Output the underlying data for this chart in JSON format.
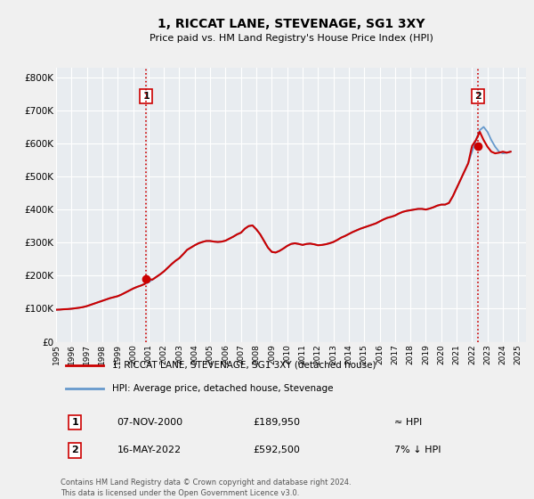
{
  "title": "1, RICCAT LANE, STEVENAGE, SG1 3XY",
  "subtitle": "Price paid vs. HM Land Registry's House Price Index (HPI)",
  "xlim_left": 1995.0,
  "xlim_right": 2025.5,
  "ylim_bottom": 0,
  "ylim_top": 830000,
  "yticks": [
    0,
    100000,
    200000,
    300000,
    400000,
    500000,
    600000,
    700000,
    800000
  ],
  "ytick_labels": [
    "£0",
    "£100K",
    "£200K",
    "£300K",
    "£400K",
    "£500K",
    "£600K",
    "£700K",
    "£800K"
  ],
  "xticks": [
    1995,
    1996,
    1997,
    1998,
    1999,
    2000,
    2001,
    2002,
    2003,
    2004,
    2005,
    2006,
    2007,
    2008,
    2009,
    2010,
    2011,
    2012,
    2013,
    2014,
    2015,
    2016,
    2017,
    2018,
    2019,
    2020,
    2021,
    2022,
    2023,
    2024,
    2025
  ],
  "fig_bg_color": "#f0f0f0",
  "plot_bg_color": "#e8ecf0",
  "grid_color": "#ffffff",
  "hpi_color": "#6699cc",
  "price_color": "#cc0000",
  "sale1_x": 2000.85,
  "sale1_y": 189950,
  "sale1_label": "1",
  "sale2_x": 2022.37,
  "sale2_y": 592500,
  "sale2_label": "2",
  "vline_color": "#cc0000",
  "marker_color": "#cc0000",
  "legend_line1": "1, RICCAT LANE, STEVENAGE, SG1 3XY (detached house)",
  "legend_line2": "HPI: Average price, detached house, Stevenage",
  "table_row1_num": "1",
  "table_row1_date": "07-NOV-2000",
  "table_row1_price": "£189,950",
  "table_row1_hpi": "≈ HPI",
  "table_row2_num": "2",
  "table_row2_date": "16-MAY-2022",
  "table_row2_price": "£592,500",
  "table_row2_hpi": "7% ↓ HPI",
  "footnote1": "Contains HM Land Registry data © Crown copyright and database right 2024.",
  "footnote2": "This data is licensed under the Open Government Licence v3.0.",
  "hpi_data_x": [
    1995.0,
    1995.25,
    1995.5,
    1995.75,
    1996.0,
    1996.25,
    1996.5,
    1996.75,
    1997.0,
    1997.25,
    1997.5,
    1997.75,
    1998.0,
    1998.25,
    1998.5,
    1998.75,
    1999.0,
    1999.25,
    1999.5,
    1999.75,
    2000.0,
    2000.25,
    2000.5,
    2000.75,
    2001.0,
    2001.25,
    2001.5,
    2001.75,
    2002.0,
    2002.25,
    2002.5,
    2002.75,
    2003.0,
    2003.25,
    2003.5,
    2003.75,
    2004.0,
    2004.25,
    2004.5,
    2004.75,
    2005.0,
    2005.25,
    2005.5,
    2005.75,
    2006.0,
    2006.25,
    2006.5,
    2006.75,
    2007.0,
    2007.25,
    2007.5,
    2007.75,
    2008.0,
    2008.25,
    2008.5,
    2008.75,
    2009.0,
    2009.25,
    2009.5,
    2009.75,
    2010.0,
    2010.25,
    2010.5,
    2010.75,
    2011.0,
    2011.25,
    2011.5,
    2011.75,
    2012.0,
    2012.25,
    2012.5,
    2012.75,
    2013.0,
    2013.25,
    2013.5,
    2013.75,
    2014.0,
    2014.25,
    2014.5,
    2014.75,
    2015.0,
    2015.25,
    2015.5,
    2015.75,
    2016.0,
    2016.25,
    2016.5,
    2016.75,
    2017.0,
    2017.25,
    2017.5,
    2017.75,
    2018.0,
    2018.25,
    2018.5,
    2018.75,
    2019.0,
    2019.25,
    2019.5,
    2019.75,
    2020.0,
    2020.25,
    2020.5,
    2020.75,
    2021.0,
    2021.25,
    2021.5,
    2021.75,
    2022.0,
    2022.25,
    2022.5,
    2022.75,
    2023.0,
    2023.25,
    2023.5,
    2023.75,
    2024.0,
    2024.25,
    2024.5
  ],
  "hpi_data_y": [
    97000,
    97500,
    98500,
    99000,
    100000,
    101500,
    103000,
    105000,
    108000,
    112000,
    116000,
    120000,
    124000,
    128000,
    132000,
    135000,
    138000,
    143000,
    149000,
    155000,
    161000,
    166000,
    170000,
    175000,
    180000,
    188000,
    196000,
    204000,
    213000,
    224000,
    235000,
    245000,
    253000,
    265000,
    278000,
    285000,
    292000,
    298000,
    302000,
    305000,
    305000,
    303000,
    302000,
    303000,
    306000,
    312000,
    318000,
    325000,
    330000,
    342000,
    350000,
    352000,
    340000,
    325000,
    305000,
    285000,
    272000,
    270000,
    275000,
    282000,
    290000,
    296000,
    298000,
    296000,
    293000,
    296000,
    297000,
    295000,
    292000,
    293000,
    295000,
    298000,
    302000,
    308000,
    315000,
    320000,
    326000,
    332000,
    337000,
    342000,
    346000,
    350000,
    354000,
    358000,
    364000,
    370000,
    375000,
    378000,
    382000,
    388000,
    393000,
    396000,
    398000,
    400000,
    402000,
    402000,
    400000,
    403000,
    407000,
    412000,
    415000,
    415000,
    420000,
    440000,
    465000,
    490000,
    515000,
    540000,
    575000,
    610000,
    640000,
    650000,
    635000,
    610000,
    590000,
    575000,
    570000,
    572000,
    575000
  ],
  "price_data_x": [
    1995.0,
    1995.25,
    1995.5,
    1995.75,
    1996.0,
    1996.25,
    1996.5,
    1996.75,
    1997.0,
    1997.25,
    1997.5,
    1997.75,
    1998.0,
    1998.25,
    1998.5,
    1998.75,
    1999.0,
    1999.25,
    1999.5,
    1999.75,
    2000.0,
    2000.25,
    2000.5,
    2000.75,
    2001.0,
    2001.25,
    2001.5,
    2001.75,
    2002.0,
    2002.25,
    2002.5,
    2002.75,
    2003.0,
    2003.25,
    2003.5,
    2003.75,
    2004.0,
    2004.25,
    2004.5,
    2004.75,
    2005.0,
    2005.25,
    2005.5,
    2005.75,
    2006.0,
    2006.25,
    2006.5,
    2006.75,
    2007.0,
    2007.25,
    2007.5,
    2007.75,
    2008.0,
    2008.25,
    2008.5,
    2008.75,
    2009.0,
    2009.25,
    2009.5,
    2009.75,
    2010.0,
    2010.25,
    2010.5,
    2010.75,
    2011.0,
    2011.25,
    2011.5,
    2011.75,
    2012.0,
    2012.25,
    2012.5,
    2012.75,
    2013.0,
    2013.25,
    2013.5,
    2013.75,
    2014.0,
    2014.25,
    2014.5,
    2014.75,
    2015.0,
    2015.25,
    2015.5,
    2015.75,
    2016.0,
    2016.25,
    2016.5,
    2016.75,
    2017.0,
    2017.25,
    2017.5,
    2017.75,
    2018.0,
    2018.25,
    2018.5,
    2018.75,
    2019.0,
    2019.25,
    2019.5,
    2019.75,
    2020.0,
    2020.25,
    2020.5,
    2020.75,
    2021.0,
    2021.25,
    2021.5,
    2021.75,
    2022.0,
    2022.25,
    2022.5,
    2022.75,
    2023.0,
    2023.25,
    2023.5,
    2023.75,
    2024.0,
    2024.25,
    2024.5
  ],
  "price_data_y": [
    97000,
    97500,
    98500,
    99000,
    100000,
    101500,
    103000,
    105000,
    108000,
    112000,
    116000,
    120000,
    124000,
    128000,
    132000,
    135000,
    138000,
    143000,
    149000,
    155000,
    161000,
    166000,
    170000,
    175000,
    189950,
    188000,
    196000,
    204000,
    213000,
    224000,
    235000,
    245000,
    253000,
    265000,
    278000,
    285000,
    292000,
    298000,
    302000,
    305000,
    305000,
    303000,
    302000,
    303000,
    306000,
    312000,
    318000,
    325000,
    330000,
    342000,
    350000,
    352000,
    340000,
    325000,
    305000,
    285000,
    272000,
    270000,
    275000,
    282000,
    290000,
    296000,
    298000,
    296000,
    293000,
    296000,
    297000,
    295000,
    292000,
    293000,
    295000,
    298000,
    302000,
    308000,
    315000,
    320000,
    326000,
    332000,
    337000,
    342000,
    346000,
    350000,
    354000,
    358000,
    364000,
    370000,
    375000,
    378000,
    382000,
    388000,
    393000,
    396000,
    398000,
    400000,
    402000,
    402000,
    400000,
    403000,
    407000,
    412000,
    415000,
    415000,
    420000,
    440000,
    465000,
    490000,
    515000,
    540000,
    592500,
    610000,
    635000,
    610000,
    590000,
    575000,
    570000,
    572000,
    575000,
    572000,
    575000
  ]
}
